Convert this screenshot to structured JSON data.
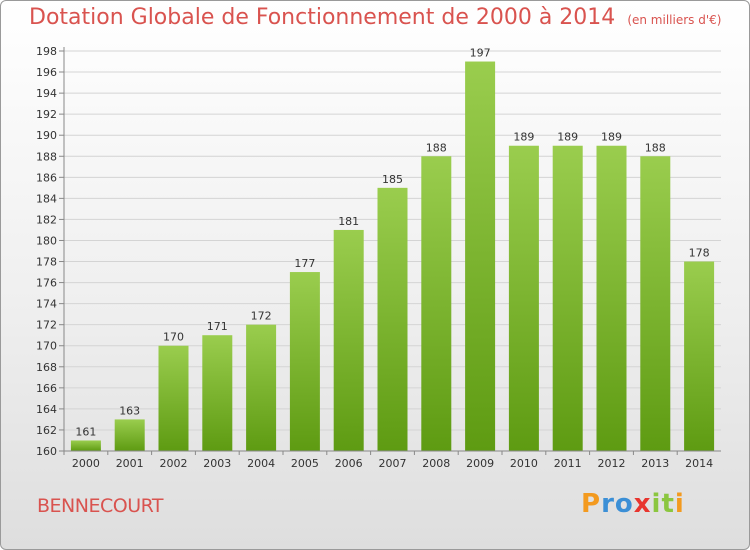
{
  "title": "Dotation Globale de Fonctionnement de 2000 à 2014",
  "unit_note": "(en milliers d'€)",
  "commune": "BENNECOURT",
  "brand": {
    "letters": [
      {
        "ch": "P",
        "color": "#f39a1f"
      },
      {
        "ch": "r",
        "color": "#3b8fd6"
      },
      {
        "ch": "o",
        "color": "#3b8fd6"
      },
      {
        "ch": "x",
        "color": "#e8352e"
      },
      {
        "ch": "i",
        "color": "#8bc63f"
      },
      {
        "ch": "t",
        "color": "#8bc63f"
      },
      {
        "ch": "i",
        "color": "#f39a1f"
      }
    ]
  },
  "colors": {
    "title": "#d9534f",
    "bar_top": "#9acd4e",
    "bar_bottom": "#5e9b12",
    "grid": "#d4d4d4",
    "axis": "#888888"
  },
  "chart_data": {
    "type": "bar",
    "categories": [
      "2000",
      "2001",
      "2002",
      "2003",
      "2004",
      "2005",
      "2006",
      "2007",
      "2008",
      "2009",
      "2010",
      "2011",
      "2012",
      "2013",
      "2014"
    ],
    "values": [
      161,
      163,
      170,
      171,
      172,
      177,
      181,
      185,
      188,
      197,
      189,
      189,
      189,
      188,
      178
    ],
    "ylim": [
      160,
      198
    ],
    "yticks": [
      160,
      162,
      164,
      166,
      168,
      170,
      172,
      174,
      176,
      178,
      180,
      182,
      184,
      186,
      188,
      190,
      192,
      194,
      196,
      198
    ],
    "title": "Dotation Globale de Fonctionnement de 2000 à 2014",
    "xlabel": "",
    "ylabel": "(en milliers d'€)",
    "grid": true
  }
}
